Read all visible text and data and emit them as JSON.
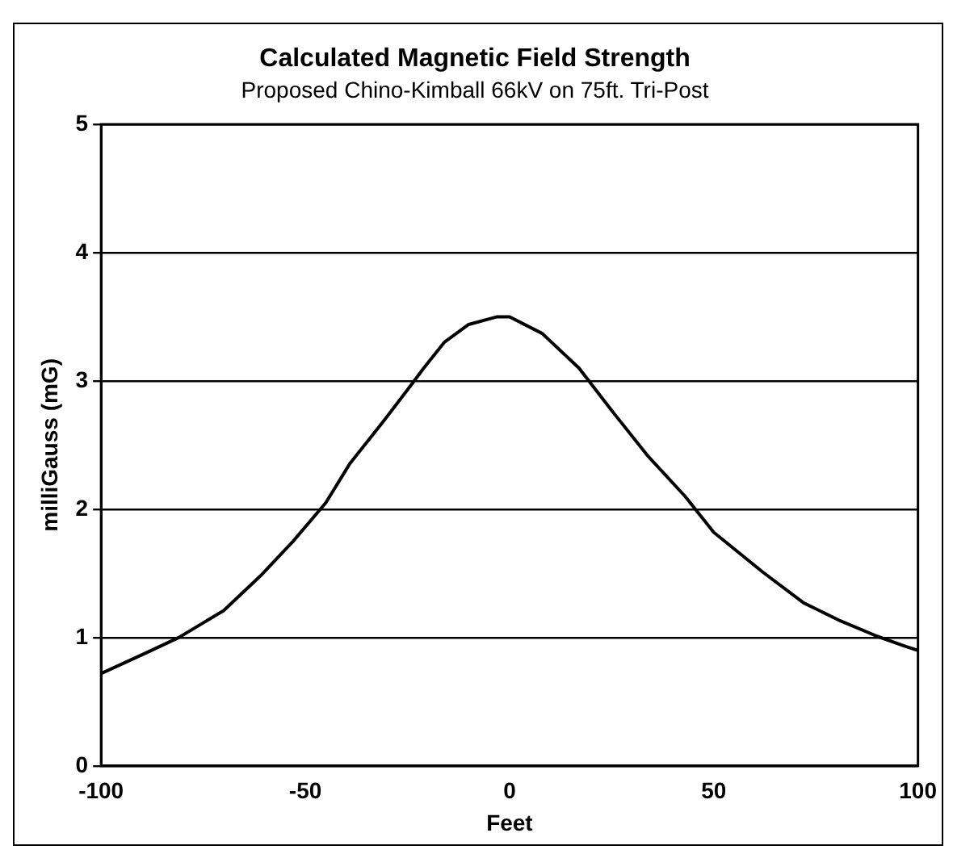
{
  "chart_data": {
    "type": "line",
    "title": "Calculated Magnetic Field Strength",
    "subtitle": "Proposed Chino-Kimball 66kV on 75ft. Tri-Post",
    "xlabel": "Feet",
    "ylabel": "milliGauss (mG)",
    "x": [
      -100,
      -89,
      -81,
      -70,
      -61,
      -53,
      -45,
      -39,
      -31,
      -25,
      -21,
      -16,
      -10,
      -3,
      0,
      8,
      17,
      25,
      34,
      43,
      50,
      62,
      72,
      81,
      90,
      97,
      100
    ],
    "series": [
      {
        "color": "#000000",
        "values": [
          0.72,
          0.88,
          1.0,
          1.21,
          1.48,
          1.75,
          2.05,
          2.36,
          2.68,
          2.93,
          3.1,
          3.3,
          3.44,
          3.5,
          3.5,
          3.37,
          3.1,
          2.77,
          2.41,
          2.1,
          1.82,
          1.51,
          1.27,
          1.13,
          1.01,
          0.93,
          0.9
        ]
      }
    ],
    "xlim": [
      -100,
      100
    ],
    "xticks": [
      -100,
      -50,
      0,
      50,
      100
    ],
    "ylim": [
      0,
      5
    ],
    "yticks": [
      0,
      1,
      2,
      3,
      4,
      5
    ],
    "grid": "y",
    "legend": false,
    "marker": "none",
    "line_style": "solid"
  }
}
